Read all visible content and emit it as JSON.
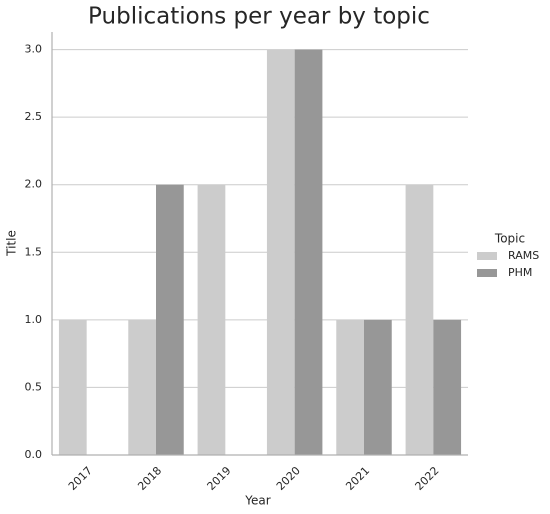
{
  "chart_data": {
    "type": "bar",
    "title": "Publications per year by topic",
    "x_label": "Year",
    "y_label": "Title",
    "categories": [
      "2017",
      "2018",
      "2019",
      "2020",
      "2021",
      "2022"
    ],
    "series": [
      {
        "name": "RAMS",
        "color": "#cccccc",
        "values": [
          1,
          1,
          2,
          3,
          1,
          2
        ]
      },
      {
        "name": "PHM",
        "color": "#979797",
        "values": [
          0,
          2,
          0,
          3,
          1,
          1
        ]
      }
    ],
    "legend_title": "Topic",
    "legend": "right",
    "ylim": [
      0,
      3.13
    ],
    "yticks": [
      {
        "value": 0,
        "label": "0.0"
      },
      0.5,
      {
        "value": 1,
        "label": "1.0"
      },
      1.5,
      {
        "value": 2,
        "label": "2.0"
      },
      2.5,
      {
        "value": 3,
        "label": "3.0"
      }
    ],
    "grid": true
  }
}
